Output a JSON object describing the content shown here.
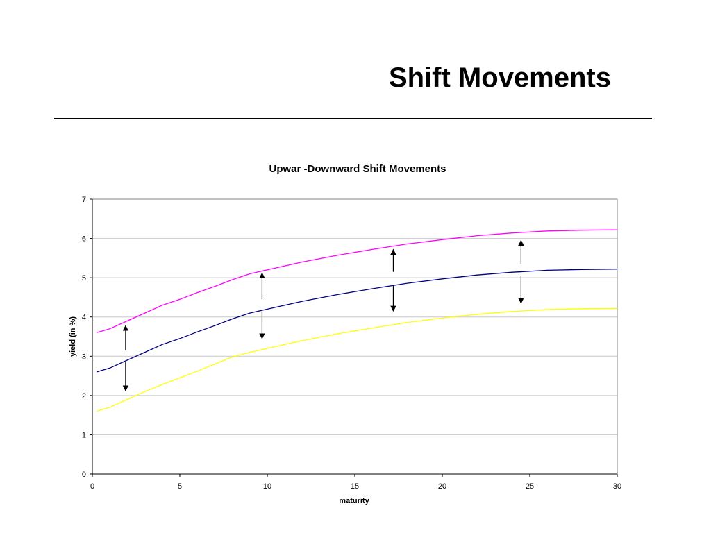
{
  "slide": {
    "title": "Shift Movements"
  },
  "colors": {
    "upper_curve": "#ff00ff",
    "base_curve": "#000080",
    "lower_curve": "#ffff00",
    "arrows": "#000000",
    "grid": "#c8c8c8"
  },
  "chart_data": {
    "type": "line",
    "title": "Upwar -Downward Shift Movements",
    "xlabel": "maturity",
    "ylabel": "yield (in %)",
    "xlim": [
      0,
      30
    ],
    "ylim": [
      0,
      7
    ],
    "xticks": [
      0,
      5,
      10,
      15,
      20,
      25,
      30
    ],
    "yticks": [
      0,
      1,
      2,
      3,
      4,
      5,
      6,
      7
    ],
    "grid": "horizontal",
    "legend": "none",
    "x": [
      0.25,
      1,
      2,
      3,
      4,
      5,
      6,
      7,
      8,
      9,
      10,
      12,
      14,
      16,
      18,
      20,
      22,
      24,
      26,
      28,
      30
    ],
    "series": [
      {
        "color": "#ff00ff",
        "values": [
          3.6,
          3.7,
          3.9,
          4.1,
          4.3,
          4.45,
          4.62,
          4.78,
          4.95,
          5.1,
          5.2,
          5.4,
          5.57,
          5.72,
          5.86,
          5.97,
          6.07,
          6.14,
          6.19,
          6.21,
          6.22
        ]
      },
      {
        "color": "#000080",
        "values": [
          2.6,
          2.7,
          2.9,
          3.1,
          3.3,
          3.45,
          3.62,
          3.78,
          3.95,
          4.1,
          4.2,
          4.4,
          4.57,
          4.72,
          4.86,
          4.97,
          5.07,
          5.14,
          5.19,
          5.21,
          5.22
        ]
      },
      {
        "color": "#ffff00",
        "values": [
          1.6,
          1.7,
          1.9,
          2.1,
          2.28,
          2.45,
          2.62,
          2.8,
          2.98,
          3.1,
          3.2,
          3.4,
          3.57,
          3.72,
          3.86,
          3.97,
          4.07,
          4.14,
          4.19,
          4.21,
          4.22
        ]
      }
    ],
    "arrows": [
      {
        "x": 1.9,
        "from": 3.15,
        "to": 3.78
      },
      {
        "x": 1.9,
        "from": 2.85,
        "to": 2.12
      },
      {
        "x": 9.7,
        "from": 4.45,
        "to": 5.12
      },
      {
        "x": 9.7,
        "from": 4.15,
        "to": 3.45
      },
      {
        "x": 17.2,
        "from": 5.15,
        "to": 5.72
      },
      {
        "x": 17.2,
        "from": 4.8,
        "to": 4.15
      },
      {
        "x": 24.5,
        "from": 5.35,
        "to": 5.95
      },
      {
        "x": 24.5,
        "from": 5.05,
        "to": 4.35
      }
    ]
  }
}
